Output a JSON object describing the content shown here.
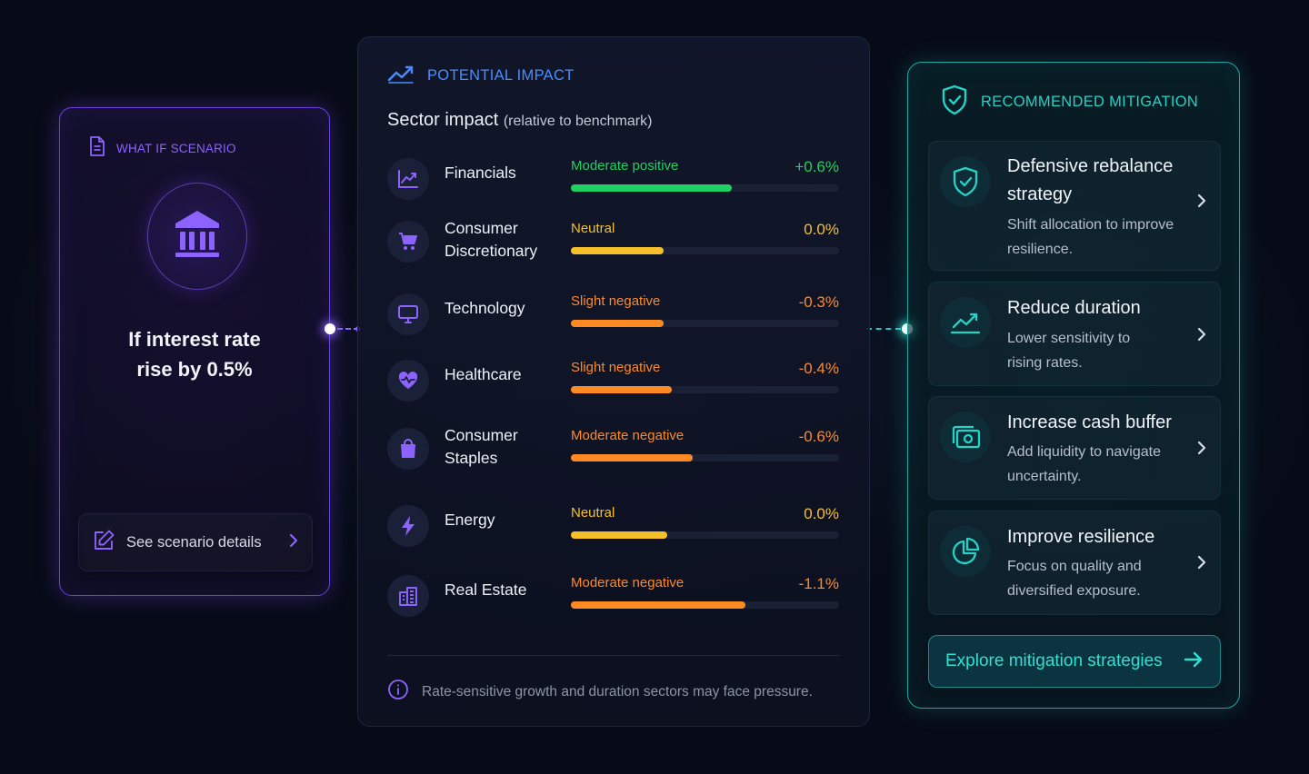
{
  "scenario": {
    "header": "WHAT IF SCENARIO",
    "title_line1": "If interest rate",
    "title_line2": "rise by 0.5%",
    "details_label": "See scenario details"
  },
  "impact": {
    "header": "POTENTIAL IMPACT",
    "subtitle": "Sector impact",
    "subtitle_paren": "(relative to benchmark)",
    "note": "Rate-sensitive growth and duration sectors may face pressure.",
    "sectors": [
      {
        "line1": "Financials",
        "line2": "",
        "status": "Moderate positive",
        "value": "+0.6%",
        "fill": 0.6,
        "color": "#1fd160",
        "icon": "trend-up-icon"
      },
      {
        "line1": "Consumer",
        "line2": "Discretionary",
        "status": "Neutral",
        "value": "0.0%",
        "fill": 0.345,
        "color": "#f5c02a",
        "icon": "cart-icon"
      },
      {
        "line1": "Technology",
        "line2": "",
        "status": "Slight negative",
        "value": "-0.3%",
        "fill": 0.345,
        "color": "#ff8a24",
        "icon": "monitor-icon"
      },
      {
        "line1": "Healthcare",
        "line2": "",
        "status": "Slight negative",
        "value": "-0.4%",
        "fill": 0.375,
        "color": "#ff8a24",
        "icon": "heart-pulse-icon"
      },
      {
        "line1": "Consumer",
        "line2": "Staples",
        "status": "Moderate negative",
        "value": "-0.6%",
        "fill": 0.455,
        "color": "#ff8a24",
        "icon": "shopping-bag-icon"
      },
      {
        "line1": "Energy",
        "line2": "",
        "status": "Neutral",
        "value": "0.0%",
        "fill": 0.36,
        "color": "#f5c02a",
        "icon": "lightning-icon"
      },
      {
        "line1": "Real Estate",
        "line2": "",
        "status": "Moderate negative",
        "value": "-1.1%",
        "fill": 0.65,
        "color": "#ff8a24",
        "icon": "buildings-icon"
      }
    ]
  },
  "mitigation": {
    "header": "RECOMMENDED MITIGATION",
    "items": [
      {
        "title_line1": "Defensive rebalance",
        "title_line2": "strategy",
        "desc_line1": "Shift allocation to improve",
        "desc_line2": "resilience.",
        "icon": "shield-check-icon"
      },
      {
        "title_line1": "Reduce duration",
        "title_line2": "",
        "desc_line1": "Lower sensitivity to",
        "desc_line2": "rising rates.",
        "icon": "chart-up-icon"
      },
      {
        "title_line1": "Increase cash buffer",
        "title_line2": "",
        "desc_line1": "Add liquidity to navigate",
        "desc_line2": "uncertainty.",
        "icon": "cash-icon"
      },
      {
        "title_line1": "Improve resilience",
        "title_line2": "",
        "desc_line1": "Focus on quality and",
        "desc_line2": "diversified exposure.",
        "icon": "pie-chart-icon"
      }
    ],
    "cta_label": "Explore mitigation strategies"
  },
  "colors": {
    "purple_accent": "#8d63ff",
    "blue_accent": "#4a8cff",
    "teal_accent": "#25d2c6",
    "positive": "#1fd160",
    "neutral": "#f5c02a",
    "negative": "#ff8a24"
  }
}
